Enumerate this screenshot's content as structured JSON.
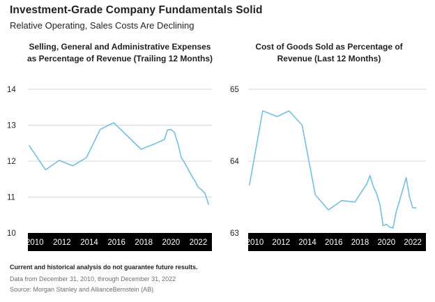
{
  "header": {
    "title": "Investment-Grade Company Fundamentals Solid",
    "subtitle": "Relative Operating, Sales Costs Are Declining"
  },
  "colors": {
    "line": "#6ec1e4",
    "axis_band": "#000000",
    "grid": "#d9d9d9",
    "text": "#231f20"
  },
  "footnotes": {
    "disclaimer": "Current and historical analysis do not guarantee future results.",
    "data_range": "Data from December 31, 2010, through December 31, 2022",
    "source": "Source: Morgan Stanley and AllianceBernstein (AB)"
  },
  "chart_data": [
    {
      "type": "line",
      "title_lines": [
        "Selling, General and Administrative Expenses",
        "as Percentage of Revenue (Trailing 12 Months)"
      ],
      "xlabel": "",
      "ylabel": "",
      "xlim": [
        2009.5,
        2023.0
      ],
      "ylim": [
        10,
        14
      ],
      "yticks": [
        "10",
        "11",
        "12",
        "13",
        "14"
      ],
      "xticks": [
        "2010",
        "2012",
        "2014",
        "2016",
        "2018",
        "2020",
        "2022"
      ],
      "grid": true,
      "series": [
        {
          "x": [
            2009.6,
            2010.8,
            2011.8,
            2012.8,
            2013.8,
            2014.8,
            2015.8,
            2016.8,
            2017.8,
            2018.8,
            2019.5,
            2019.75,
            2020.0,
            2020.25,
            2020.5,
            2020.75,
            2021.0,
            2021.5,
            2021.75,
            2022.0,
            2022.25,
            2022.5,
            2022.75
          ],
          "y": [
            12.43,
            11.76,
            12.02,
            11.87,
            12.1,
            12.88,
            13.07,
            12.7,
            12.33,
            12.48,
            12.6,
            12.87,
            12.88,
            12.8,
            12.5,
            12.1,
            11.95,
            11.6,
            11.45,
            11.27,
            11.2,
            11.1,
            10.8
          ]
        }
      ]
    },
    {
      "type": "line",
      "title_lines": [
        "Cost of Goods Sold as Percentage of",
        "Revenue (Last 12 Months)"
      ],
      "xlabel": "",
      "ylabel": "",
      "xlim": [
        2009.5,
        2023.0
      ],
      "ylim": [
        63,
        65
      ],
      "yticks": [
        "63",
        "64",
        "65"
      ],
      "xticks": [
        "2010",
        "2012",
        "2014",
        "2016",
        "2018",
        "2020",
        "2022"
      ],
      "grid": true,
      "series": [
        {
          "x": [
            2009.6,
            2010.6,
            2011.7,
            2012.6,
            2013.6,
            2014.6,
            2015.6,
            2016.6,
            2017.6,
            2018.5,
            2018.75,
            2019.0,
            2019.25,
            2019.5,
            2019.75,
            2020.0,
            2020.25,
            2020.5,
            2020.75,
            2021.0,
            2021.5,
            2021.75,
            2022.0,
            2022.25
          ],
          "y": [
            63.67,
            64.7,
            64.62,
            64.7,
            64.5,
            63.53,
            63.32,
            63.45,
            63.43,
            63.68,
            63.8,
            63.65,
            63.55,
            63.4,
            63.1,
            63.12,
            63.08,
            63.07,
            63.3,
            63.45,
            63.77,
            63.5,
            63.35,
            63.35
          ]
        }
      ]
    }
  ]
}
